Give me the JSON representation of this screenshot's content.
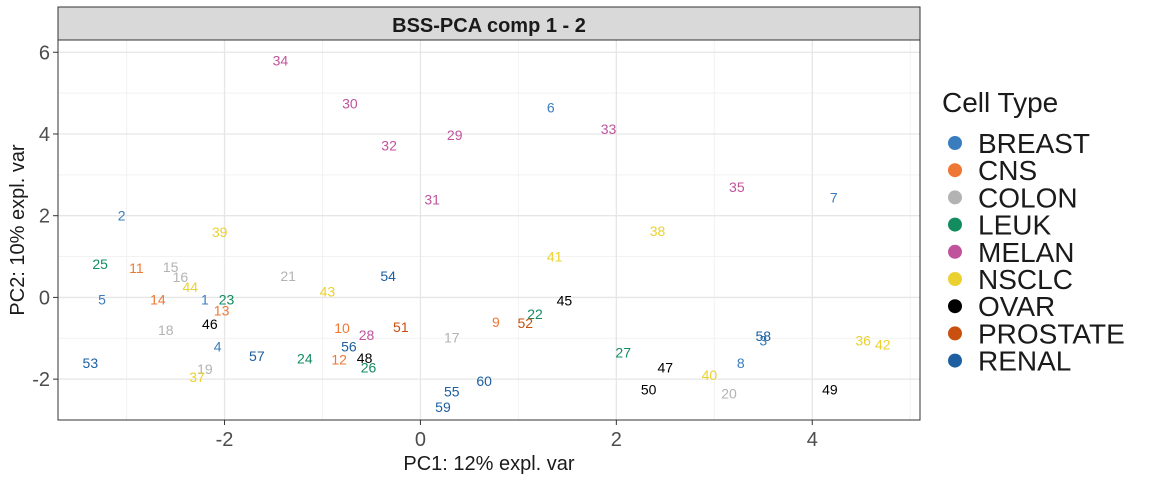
{
  "chart_data": {
    "type": "scatter",
    "title": "BSS-PCA comp 1 - 2",
    "xlabel": "PC1: 12% expl. var",
    "ylabel": "PC2: 10% expl. var",
    "xlim": [
      -3.7,
      5.1
    ],
    "ylim": [
      -3.0,
      6.3
    ],
    "xticks": [
      -2,
      0,
      2,
      4
    ],
    "yticks": [
      -2,
      0,
      2,
      4,
      6
    ],
    "grid": true,
    "legend": {
      "title": "Cell Type",
      "placement": "right"
    },
    "series": [
      {
        "name": "BREAST",
        "color": "#3A7DBF",
        "points": [
          {
            "label": "2",
            "x": -3.05,
            "y": 2.0
          },
          {
            "label": "5",
            "x": -3.25,
            "y": -0.05
          },
          {
            "label": "1",
            "x": -2.2,
            "y": -0.05
          },
          {
            "label": "4",
            "x": -2.07,
            "y": -1.2
          },
          {
            "label": "6",
            "x": 1.33,
            "y": 4.65
          },
          {
            "label": "7",
            "x": 4.22,
            "y": 2.45
          },
          {
            "label": "8",
            "x": 3.27,
            "y": -1.6
          },
          {
            "label": "3",
            "x": 3.5,
            "y": -1.05
          }
        ]
      },
      {
        "name": "CNS",
        "color": "#EE7733",
        "points": [
          {
            "label": "11",
            "x": -2.9,
            "y": 0.72
          },
          {
            "label": "14",
            "x": -2.68,
            "y": -0.05
          },
          {
            "label": "13",
            "x": -2.03,
            "y": -0.32
          },
          {
            "label": "10",
            "x": -0.8,
            "y": -0.75
          },
          {
            "label": "12",
            "x": -0.83,
            "y": -1.52
          },
          {
            "label": "9",
            "x": 0.77,
            "y": -0.6
          }
        ]
      },
      {
        "name": "COLON",
        "color": "#B3B3B3",
        "points": [
          {
            "label": "15",
            "x": -2.55,
            "y": 0.75
          },
          {
            "label": "16",
            "x": -2.45,
            "y": 0.5
          },
          {
            "label": "18",
            "x": -2.6,
            "y": -0.8
          },
          {
            "label": "19",
            "x": -2.2,
            "y": -1.75
          },
          {
            "label": "21",
            "x": -1.35,
            "y": 0.52
          },
          {
            "label": "17",
            "x": 0.32,
            "y": -0.98
          },
          {
            "label": "20",
            "x": 3.15,
            "y": -2.35
          }
        ]
      },
      {
        "name": "LEUK",
        "color": "#138C5F",
        "points": [
          {
            "label": "25",
            "x": -3.27,
            "y": 0.82
          },
          {
            "label": "23",
            "x": -1.98,
            "y": -0.05
          },
          {
            "label": "24",
            "x": -1.18,
            "y": -1.5
          },
          {
            "label": "26",
            "x": -0.53,
            "y": -1.72
          },
          {
            "label": "22",
            "x": 1.17,
            "y": -0.4
          },
          {
            "label": "27",
            "x": 2.07,
            "y": -1.35
          }
        ]
      },
      {
        "name": "MELAN",
        "color": "#C0549C",
        "points": [
          {
            "label": "34",
            "x": -1.43,
            "y": 5.8
          },
          {
            "label": "30",
            "x": -0.72,
            "y": 4.75
          },
          {
            "label": "32",
            "x": -0.32,
            "y": 3.72
          },
          {
            "label": "29",
            "x": 0.35,
            "y": 3.97
          },
          {
            "label": "33",
            "x": 1.92,
            "y": 4.12
          },
          {
            "label": "35",
            "x": 3.23,
            "y": 2.7
          },
          {
            "label": "31",
            "x": 0.12,
            "y": 2.4
          },
          {
            "label": "28",
            "x": -0.55,
            "y": -0.92
          }
        ]
      },
      {
        "name": "NSCLC",
        "color": "#EBD12F",
        "points": [
          {
            "label": "39",
            "x": -2.05,
            "y": 1.6
          },
          {
            "label": "44",
            "x": -2.35,
            "y": 0.25
          },
          {
            "label": "37",
            "x": -2.28,
            "y": -1.95
          },
          {
            "label": "43",
            "x": -0.95,
            "y": 0.15
          },
          {
            "label": "41",
            "x": 1.37,
            "y": 1.0
          },
          {
            "label": "38",
            "x": 2.42,
            "y": 1.63
          },
          {
            "label": "40",
            "x": 2.95,
            "y": -1.9
          },
          {
            "label": "36",
            "x": 4.52,
            "y": -1.05
          },
          {
            "label": "42",
            "x": 4.72,
            "y": -1.15
          }
        ]
      },
      {
        "name": "OVAR",
        "color": "#000000",
        "points": [
          {
            "label": "46",
            "x": -2.15,
            "y": -0.65
          },
          {
            "label": "48",
            "x": -0.57,
            "y": -1.48
          },
          {
            "label": "45",
            "x": 1.47,
            "y": -0.07
          },
          {
            "label": "47",
            "x": 2.5,
            "y": -1.72
          },
          {
            "label": "50",
            "x": 2.33,
            "y": -2.25
          },
          {
            "label": "49",
            "x": 4.18,
            "y": -2.25
          }
        ]
      },
      {
        "name": "PROSTATE",
        "color": "#C9500F",
        "points": [
          {
            "label": "51",
            "x": -0.2,
            "y": -0.72
          },
          {
            "label": "52",
            "x": 1.07,
            "y": -0.62
          }
        ]
      },
      {
        "name": "RENAL",
        "color": "#1D5FA0",
        "points": [
          {
            "label": "53",
            "x": -3.37,
            "y": -1.6
          },
          {
            "label": "57",
            "x": -1.67,
            "y": -1.43
          },
          {
            "label": "56",
            "x": -0.73,
            "y": -1.2
          },
          {
            "label": "54",
            "x": -0.33,
            "y": 0.52
          },
          {
            "label": "55",
            "x": 0.32,
            "y": -2.3
          },
          {
            "label": "59",
            "x": 0.23,
            "y": -2.68
          },
          {
            "label": "60",
            "x": 0.65,
            "y": -2.05
          },
          {
            "label": "58",
            "x": 3.5,
            "y": -0.95
          }
        ]
      }
    ]
  }
}
